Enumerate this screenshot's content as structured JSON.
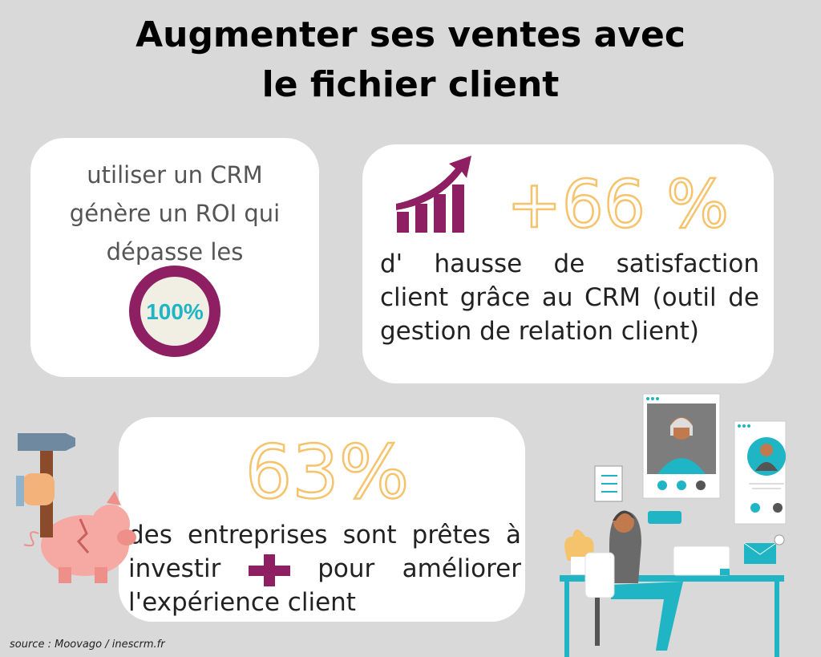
{
  "title_lines": [
    "Augmenter ses ventes avec",
    "le fichier client"
  ],
  "card_roi": {
    "text": "utiliser un CRM génère un ROI qui dépasse les",
    "badge": "100%"
  },
  "card_satisfaction": {
    "stat": "+66 %",
    "text": "d' hausse de satisfaction client grâce au CRM (outil de gestion de relation client)"
  },
  "card_invest": {
    "stat": "63%",
    "text_before": "des entreprises sont prêtes à investir",
    "text_after": "pour améliorer l'expérience client"
  },
  "source": "source : Moovago / inescrm.fr"
}
